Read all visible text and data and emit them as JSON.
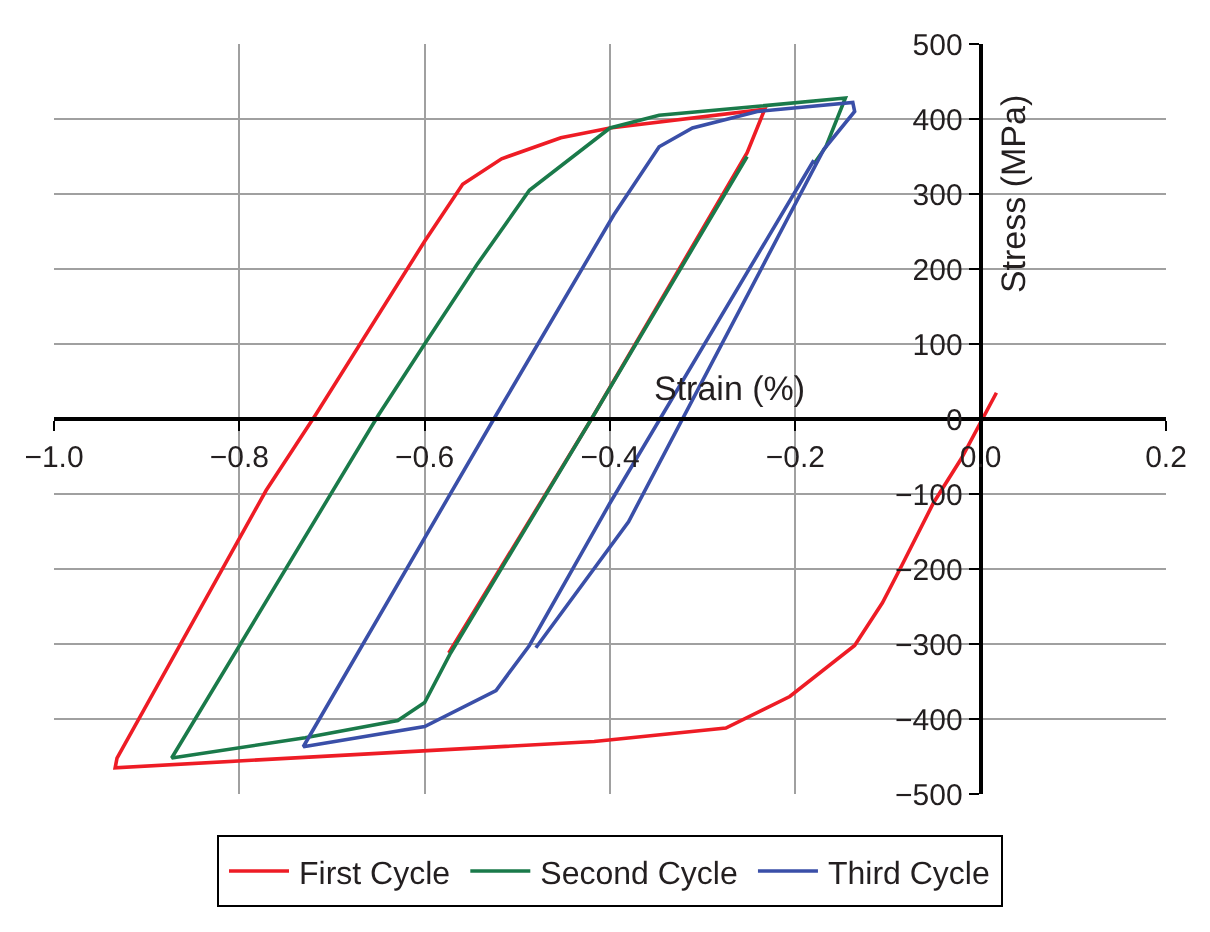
{
  "chart_data": {
    "type": "line",
    "xlabel": "Strain (%)",
    "ylabel": "Stress (MPa)",
    "xlim": [
      -1.0,
      0.2
    ],
    "xticks": [
      {
        "value": -1.0,
        "label": "−1.0"
      },
      {
        "value": -0.8,
        "label": "−0.8"
      },
      {
        "value": -0.6,
        "label": "−0.6"
      },
      {
        "value": -0.4,
        "label": "−0.4"
      },
      {
        "value": -0.2,
        "label": "−0.2"
      },
      {
        "value": 0,
        "label": "0.0"
      },
      {
        "value": 0.2,
        "label": "0.2"
      }
    ],
    "ylim": [
      -500,
      500
    ],
    "yticks": [
      {
        "value": -500,
        "label": "−500"
      },
      {
        "value": -400,
        "label": "−400"
      },
      {
        "value": -300,
        "label": "−300"
      },
      {
        "value": -200,
        "label": "−200"
      },
      {
        "value": -100,
        "label": "−100"
      },
      0,
      100,
      200,
      300,
      400,
      500
    ],
    "grid": true,
    "legend": "bottom",
    "marker": "none",
    "line_style": "solid",
    "series": [
      {
        "name": "First Cycle",
        "color": "#ee1c25",
        "x": [
          0.017,
          -0.021,
          -0.051,
          -0.085,
          -0.106,
          -0.136,
          -0.206,
          -0.275,
          -0.417,
          -0.934,
          -0.932,
          -0.771,
          -0.718,
          -0.6,
          -0.559,
          -0.517,
          -0.453,
          -0.4,
          -0.233,
          -0.252,
          -0.42,
          -0.574
        ],
        "values": [
          35,
          -53,
          -112,
          -195,
          -245,
          -302,
          -370,
          -412,
          -430,
          -465,
          -452,
          -95,
          5,
          237,
          313,
          347,
          375,
          388,
          413,
          355,
          0,
          -312
        ]
      },
      {
        "name": "Second Cycle",
        "color": "#1a7a4a",
        "x": [
          -0.252,
          -0.42,
          -0.572,
          -0.6,
          -0.629,
          -0.729,
          -0.873,
          -0.65,
          -0.6,
          -0.544,
          -0.487,
          -0.4,
          -0.347,
          -0.24,
          -0.146,
          -0.167,
          -0.18
        ],
        "values": [
          350,
          0,
          -312,
          -378,
          -402,
          -425,
          -452,
          5,
          100,
          205,
          305,
          388,
          405,
          417,
          428,
          363,
          340
        ]
      },
      {
        "name": "Third Cycle",
        "color": "#3a4fa8",
        "x": [
          -0.18,
          -0.4,
          -0.487,
          -0.523,
          -0.6,
          -0.731,
          -0.523,
          -0.396,
          -0.347,
          -0.311,
          -0.241,
          -0.138,
          -0.136,
          -0.169,
          -0.38,
          -0.48
        ],
        "values": [
          345,
          -112,
          -302,
          -362,
          -410,
          -437,
          5,
          272,
          363,
          388,
          410,
          422,
          410,
          360,
          -137,
          -305
        ]
      }
    ]
  }
}
